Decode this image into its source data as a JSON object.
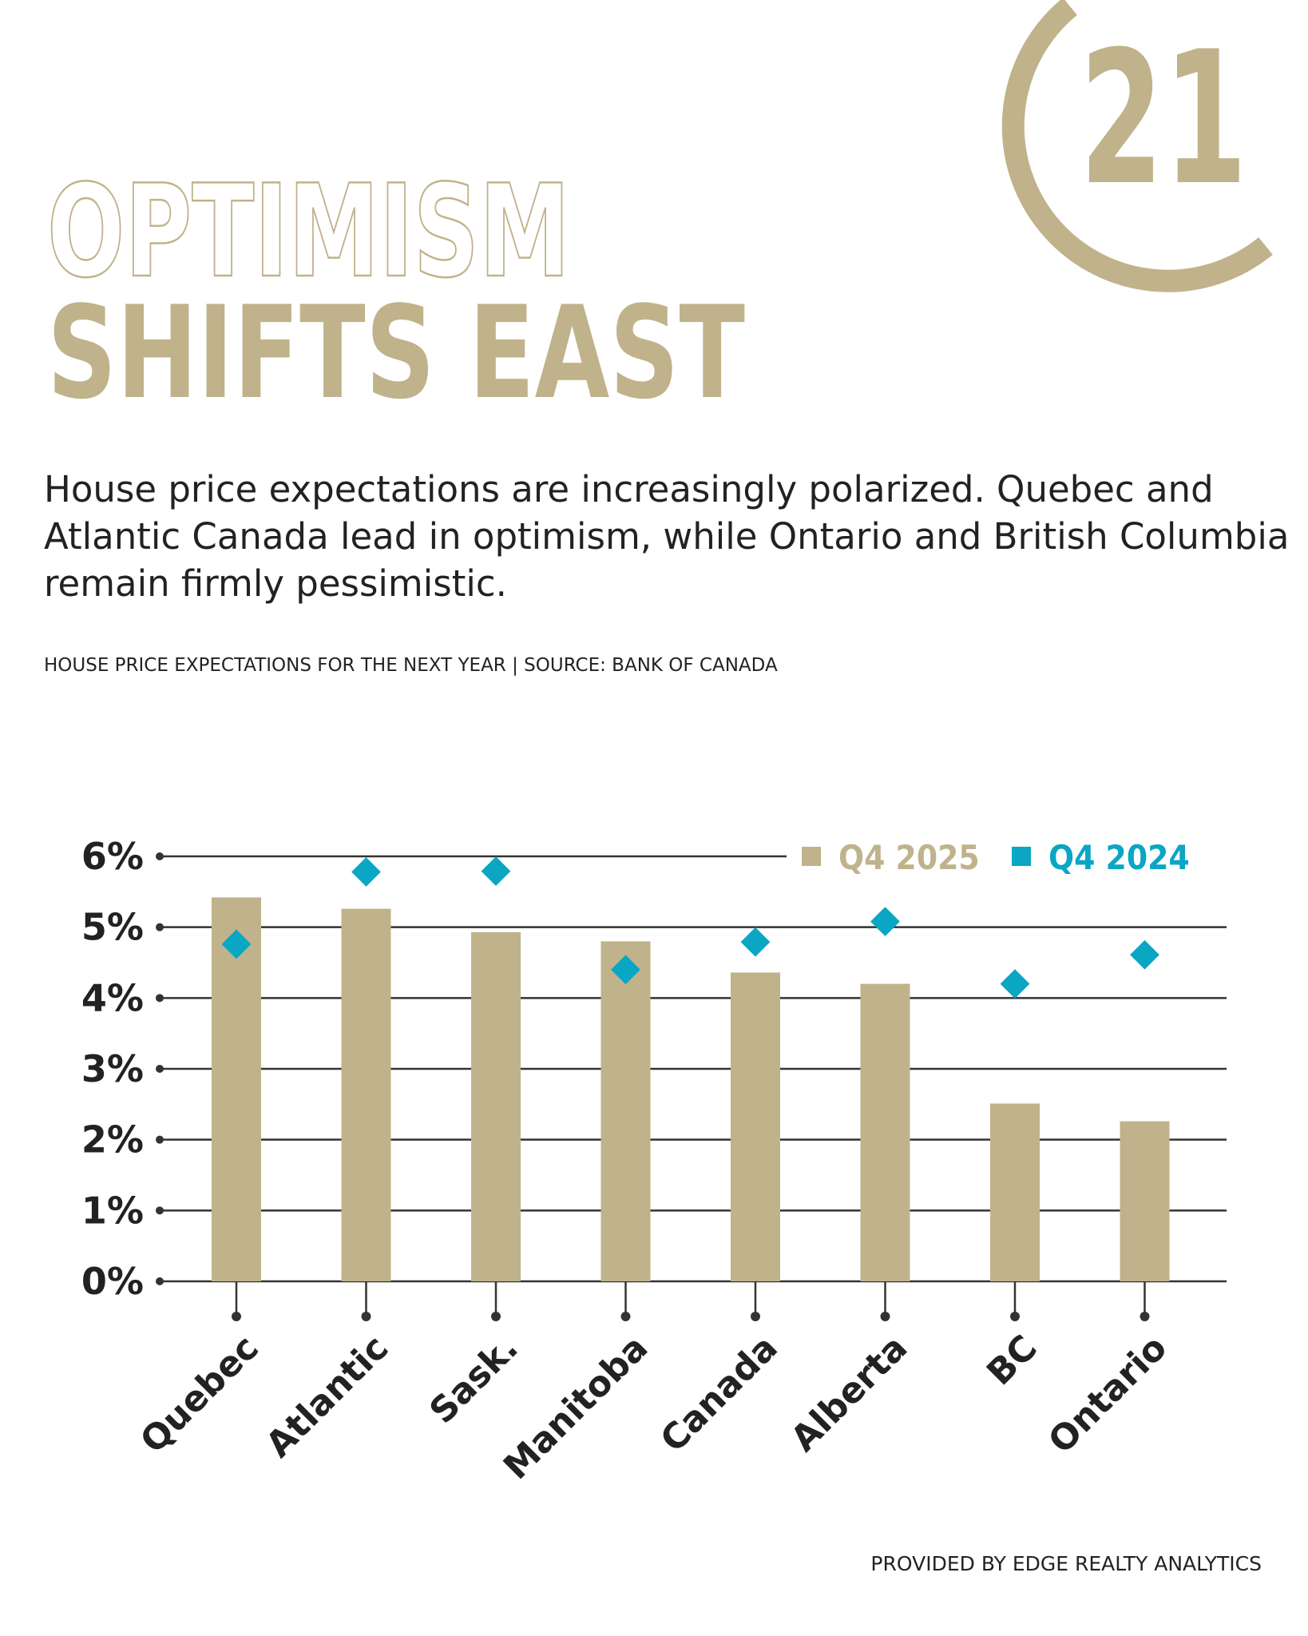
{
  "logo": "21",
  "chart_data": {
    "type": "bar",
    "title": "OPTIMISM",
    "subtitle": "SHIFTS EAST",
    "description": "House price expectations are increasingly polarized. Quebec and Atlantic Canada lead in optimism, while Ontario and British Columbia remain firmly pessimistic.",
    "caption": "HOUSE PRICE EXPECTATIONS FOR THE NEXT YEAR | SOURCE: BANK OF CANADA",
    "footer": "PROVIDED BY EDGE REALTY ANALYTICS",
    "categories": [
      "Quebec",
      "Atlantic",
      "Sask.",
      "Manitoba",
      "Canada",
      "Alberta",
      "BC",
      "Ontario"
    ],
    "series": [
      {
        "name": "Q4 2025",
        "color": "#c0b28a",
        "values": [
          5.42,
          5.26,
          4.93,
          4.8,
          4.36,
          4.2,
          2.51,
          2.26
        ]
      },
      {
        "name": "Q4 2024",
        "color": "#0aa6c4",
        "marker": "diamond",
        "values": [
          4.76,
          5.78,
          5.79,
          4.4,
          4.79,
          5.08,
          4.2,
          4.61
        ]
      }
    ],
    "ylim": [
      0,
      6
    ],
    "yticks": [
      {
        "value": 0,
        "label": "0%"
      },
      {
        "value": 1,
        "label": "1%"
      },
      {
        "value": 2,
        "label": "2%"
      },
      {
        "value": 3,
        "label": "3%"
      },
      {
        "value": 4,
        "label": "4%"
      },
      {
        "value": 5,
        "label": "5%"
      },
      {
        "value": 6,
        "label": "6%"
      }
    ],
    "grid": true
  }
}
